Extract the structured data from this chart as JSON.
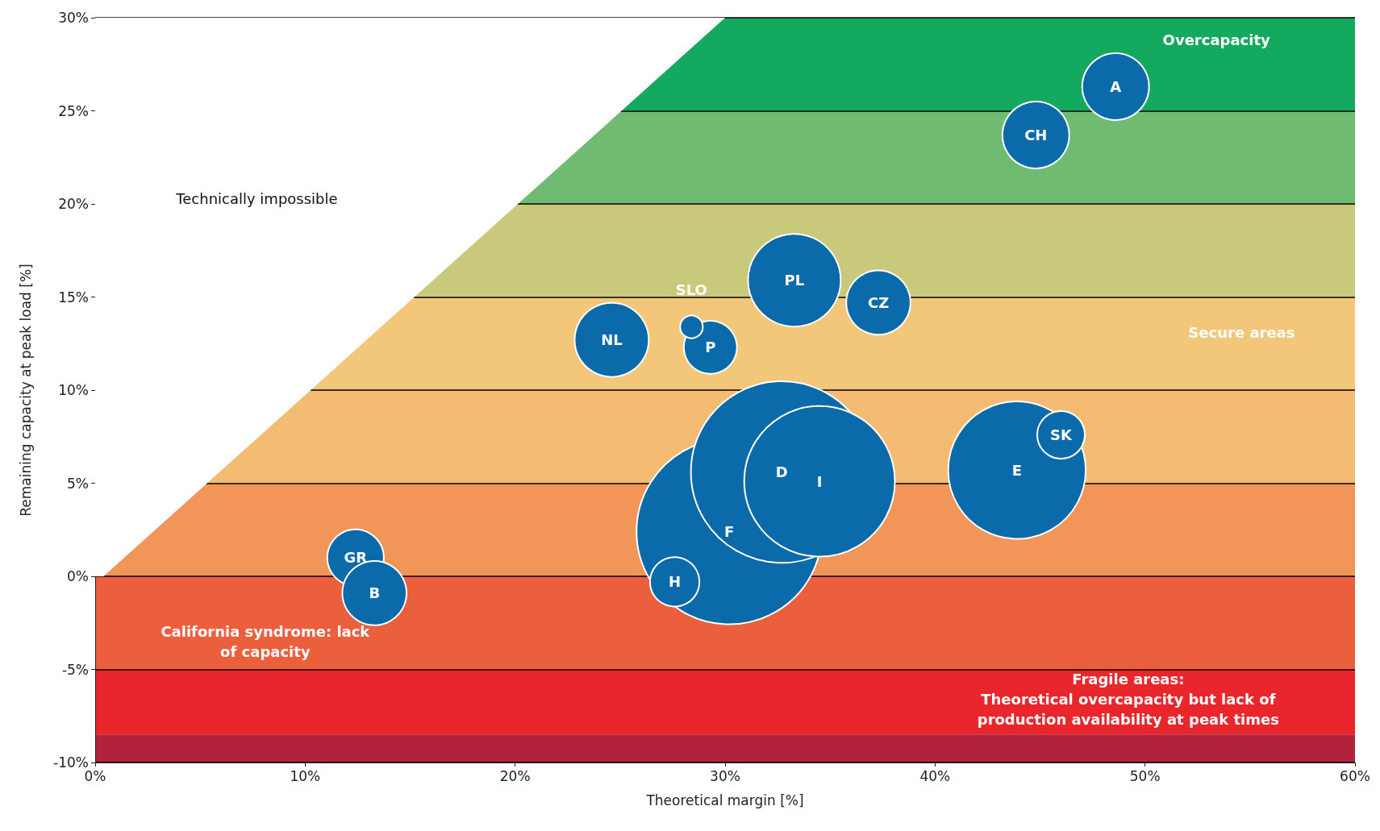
{
  "chart_data": {
    "type": "bubble",
    "xlabel": "Theoretical margin [%]",
    "ylabel": "Remaining capacity at peak load [%]",
    "xlim": [
      0,
      60
    ],
    "xticks": [
      {
        "value": 0,
        "label": "0%"
      },
      {
        "value": 10,
        "label": "10%"
      },
      {
        "value": 20,
        "label": "20%"
      },
      {
        "value": 30,
        "label": "30%"
      },
      {
        "value": 40,
        "label": "40%"
      },
      {
        "value": 50,
        "label": "50%"
      },
      {
        "value": 60,
        "label": "60%"
      }
    ],
    "ylim": [
      -10,
      30
    ],
    "yticks": [
      {
        "value": -10,
        "label": "-10%"
      },
      {
        "value": -5,
        "label": "-5%"
      },
      {
        "value": 0,
        "label": "0%"
      },
      {
        "value": 5,
        "label": "5%"
      },
      {
        "value": 10,
        "label": "10%"
      },
      {
        "value": 15,
        "label": "15%"
      },
      {
        "value": 20,
        "label": "20%"
      },
      {
        "value": 25,
        "label": "25%"
      },
      {
        "value": 30,
        "label": "30%"
      }
    ],
    "grid": "y",
    "legend": false,
    "series": [
      {
        "name": "A",
        "color": "#0a6aaa",
        "x": [
          48.6
        ],
        "values": [
          26.3
        ],
        "sizes": [
          0.13
        ]
      },
      {
        "name": "CH",
        "color": "#0a6aaa",
        "x": [
          44.8
        ],
        "values": [
          23.7
        ],
        "sizes": [
          0.13
        ]
      },
      {
        "name": "PL",
        "color": "#0a6aaa",
        "x": [
          33.3
        ],
        "values": [
          15.9
        ],
        "sizes": [
          0.25
        ]
      },
      {
        "name": "CZ",
        "color": "#0a6aaa",
        "x": [
          37.3
        ],
        "values": [
          14.7
        ],
        "sizes": [
          0.12
        ]
      },
      {
        "name": "NL",
        "color": "#0a6aaa",
        "x": [
          24.6
        ],
        "values": [
          12.7
        ],
        "sizes": [
          0.16
        ]
      },
      {
        "name": "P",
        "color": "#0a6aaa",
        "x": [
          29.3
        ],
        "values": [
          12.3
        ],
        "sizes": [
          0.082
        ]
      },
      {
        "name": "SLO",
        "color": "#0a6aaa",
        "x": [
          28.4
        ],
        "values": [
          13.4
        ],
        "sizes": [
          0.015
        ]
      },
      {
        "name": "F",
        "color": "#0a6aaa",
        "x": [
          30.2
        ],
        "values": [
          2.4
        ],
        "sizes": [
          1
        ]
      },
      {
        "name": "D",
        "color": "#0a6aaa",
        "x": [
          32.7
        ],
        "values": [
          5.6
        ],
        "sizes": [
          0.96
        ]
      },
      {
        "name": "I",
        "color": "#0a6aaa",
        "x": [
          34.5
        ],
        "values": [
          5.1
        ],
        "sizes": [
          0.66
        ]
      },
      {
        "name": "H",
        "color": "#0a6aaa",
        "x": [
          27.6
        ],
        "values": [
          -0.3
        ],
        "sizes": [
          0.071
        ]
      },
      {
        "name": "E",
        "color": "#0a6aaa",
        "x": [
          43.9
        ],
        "values": [
          5.7
        ],
        "sizes": [
          0.55
        ]
      },
      {
        "name": "SK",
        "color": "#0a6aaa",
        "x": [
          46.0
        ],
        "values": [
          7.6
        ],
        "sizes": [
          0.066
        ]
      },
      {
        "name": "GR",
        "color": "#0a6aaa",
        "x": [
          12.4
        ],
        "values": [
          1.0
        ],
        "sizes": [
          0.093
        ]
      },
      {
        "name": "B",
        "color": "#0a6aaa",
        "x": [
          13.3
        ],
        "values": [
          -0.9
        ],
        "sizes": [
          0.12
        ]
      },
      {
        "type": "area",
        "color": "#ffffff",
        "x": [
          0,
          0,
          0.4,
          30
        ],
        "values": [
          30,
          0,
          0,
          30
        ]
      }
    ],
    "bands": [
      {
        "axis": "y",
        "from": 25,
        "to": 30,
        "color": "#13a95e"
      },
      {
        "axis": "y",
        "from": 20,
        "to": 25,
        "color": "#6fbb72"
      },
      {
        "axis": "y",
        "from": 15,
        "to": 20,
        "color": "#c9c97c"
      },
      {
        "axis": "y",
        "from": 10,
        "to": 15,
        "color": "#f2c77a"
      },
      {
        "axis": "y",
        "from": 5,
        "to": 10,
        "color": "#f3bc72"
      },
      {
        "axis": "y",
        "from": 0,
        "to": 5,
        "color": "#f19558"
      },
      {
        "axis": "y",
        "from": -5,
        "to": 0,
        "color": "#ec5f3c"
      },
      {
        "axis": "y",
        "from": -8.5,
        "to": -5,
        "color": "#e8262c"
      },
      {
        "axis": "y",
        "from": -10,
        "to": -8.5,
        "color": "#b0233a"
      }
    ],
    "annotations": [
      "Technically impossible",
      "Overcapacity",
      "Secure areas",
      "California syndrome: lack\nof capacity",
      "Fragile areas:\nTheoretical overcapacity but lack of\nproduction availability at peak times"
    ]
  }
}
